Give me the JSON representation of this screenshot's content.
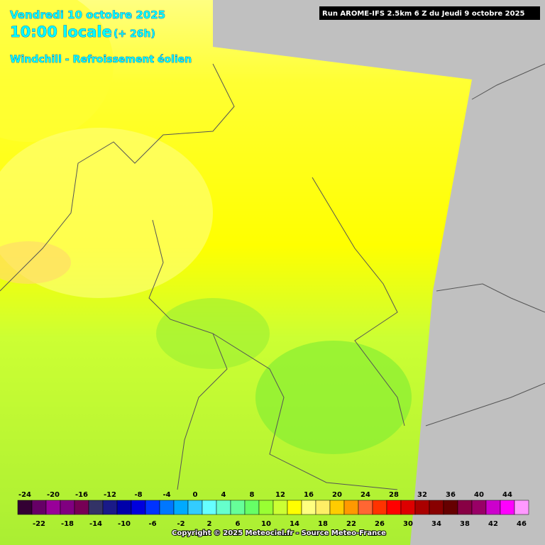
{
  "header": {
    "date": "Vendredi 10 octobre 2025",
    "time": "10:00 locale",
    "lead": "(+ 26h)",
    "parameter": "Windchill - Refroissement éolien",
    "run": "Run AROME-IFS 2.5km 6 Z du Jeudi 9 octobre 2025"
  },
  "legend": {
    "items": [
      {
        "value": -24,
        "color": "#330033"
      },
      {
        "value": -22,
        "color": "#660066"
      },
      {
        "value": -20,
        "color": "#990099"
      },
      {
        "value": -18,
        "color": "#800080"
      },
      {
        "value": -16,
        "color": "#770055"
      },
      {
        "value": -14,
        "color": "#333366"
      },
      {
        "value": -12,
        "color": "#1a1a88"
      },
      {
        "value": -10,
        "color": "#0000aa"
      },
      {
        "value": -8,
        "color": "#0000dd"
      },
      {
        "value": -6,
        "color": "#0033ff"
      },
      {
        "value": -4,
        "color": "#0077ff"
      },
      {
        "value": -2,
        "color": "#00aaff"
      },
      {
        "value": 0,
        "color": "#33ccff"
      },
      {
        "value": 2,
        "color": "#66ffff"
      },
      {
        "value": 4,
        "color": "#66ffcc"
      },
      {
        "value": 6,
        "color": "#66ff99"
      },
      {
        "value": 8,
        "color": "#66ff66"
      },
      {
        "value": 10,
        "color": "#99ff33"
      },
      {
        "value": 12,
        "color": "#ccff33"
      },
      {
        "value": 14,
        "color": "#ffff00"
      },
      {
        "value": 16,
        "color": "#ffff80"
      },
      {
        "value": 18,
        "color": "#ffee66"
      },
      {
        "value": 20,
        "color": "#ffcc00"
      },
      {
        "value": 22,
        "color": "#ff9900"
      },
      {
        "value": 24,
        "color": "#ff6633"
      },
      {
        "value": 26,
        "color": "#ff3300"
      },
      {
        "value": 28,
        "color": "#ff0000"
      },
      {
        "value": 30,
        "color": "#dd0000"
      },
      {
        "value": 32,
        "color": "#aa0000"
      },
      {
        "value": 34,
        "color": "#880000"
      },
      {
        "value": 36,
        "color": "#660000"
      },
      {
        "value": 38,
        "color": "#880044"
      },
      {
        "value": 40,
        "color": "#990066"
      },
      {
        "value": 42,
        "color": "#cc00cc"
      },
      {
        "value": 44,
        "color": "#ff00ff"
      },
      {
        "value": 46,
        "color": "#ff99ff"
      }
    ]
  },
  "footer": {
    "copyright": "Copyright © 2025 Meteociel.fr - Source Meteo-France"
  }
}
